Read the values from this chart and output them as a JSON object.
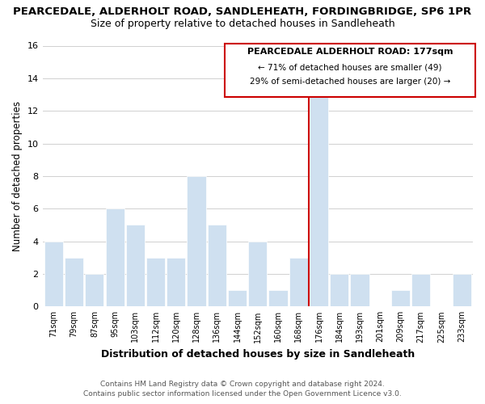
{
  "title": "PEARCEDALE, ALDERHOLT ROAD, SANDLEHEATH, FORDINGBRIDGE, SP6 1PR",
  "subtitle": "Size of property relative to detached houses in Sandleheath",
  "xlabel": "Distribution of detached houses by size in Sandleheath",
  "ylabel": "Number of detached properties",
  "bin_labels": [
    "71sqm",
    "79sqm",
    "87sqm",
    "95sqm",
    "103sqm",
    "112sqm",
    "120sqm",
    "128sqm",
    "136sqm",
    "144sqm",
    "152sqm",
    "160sqm",
    "168sqm",
    "176sqm",
    "184sqm",
    "193sqm",
    "201sqm",
    "209sqm",
    "217sqm",
    "225sqm",
    "233sqm"
  ],
  "bar_heights": [
    4,
    3,
    2,
    6,
    5,
    3,
    3,
    8,
    5,
    1,
    4,
    1,
    3,
    13,
    2,
    2,
    0,
    1,
    2,
    0,
    2
  ],
  "bar_color": "#cfe0f0",
  "highlight_bar_index": 13,
  "highlight_line_color": "#cc0000",
  "ylim": [
    0,
    16
  ],
  "yticks": [
    0,
    2,
    4,
    6,
    8,
    10,
    12,
    14,
    16
  ],
  "annotation_title": "PEARCEDALE ALDERHOLT ROAD: 177sqm",
  "annotation_line1": "← 71% of detached houses are smaller (49)",
  "annotation_line2": "29% of semi-detached houses are larger (20) →",
  "footer_line1": "Contains HM Land Registry data © Crown copyright and database right 2024.",
  "footer_line2": "Contains public sector information licensed under the Open Government Licence v3.0.",
  "background_color": "#ffffff",
  "grid_color": "#d0d0d0"
}
